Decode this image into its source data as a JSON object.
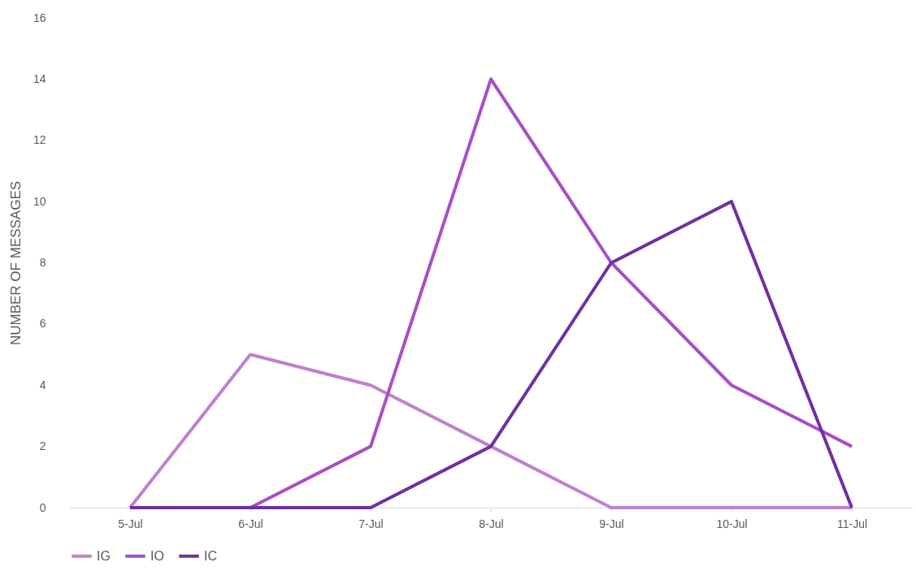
{
  "chart_data": {
    "type": "line",
    "ylabel": "NUMBER OF MESSAGES",
    "categories": [
      "5-Jul",
      "6-Jul",
      "7-Jul",
      "8-Jul",
      "9-Jul",
      "10-Jul",
      "11-Jul"
    ],
    "series": [
      {
        "name": "IG",
        "color": "#c080d0",
        "values": [
          0,
          5,
          4,
          2,
          0,
          0,
          0
        ]
      },
      {
        "name": "IO",
        "color": "#a84fc4",
        "values": [
          0,
          0,
          2,
          14,
          8,
          4,
          2
        ]
      },
      {
        "name": "IC",
        "color": "#7030a0",
        "values": [
          0,
          0,
          0,
          2,
          8,
          10,
          0
        ]
      }
    ],
    "ylim": [
      0,
      16
    ],
    "yticks": [
      0,
      2,
      4,
      6,
      8,
      10,
      12,
      14,
      16
    ],
    "grid": false,
    "legend": "bottom",
    "marker": "none",
    "line_style": "solid"
  }
}
